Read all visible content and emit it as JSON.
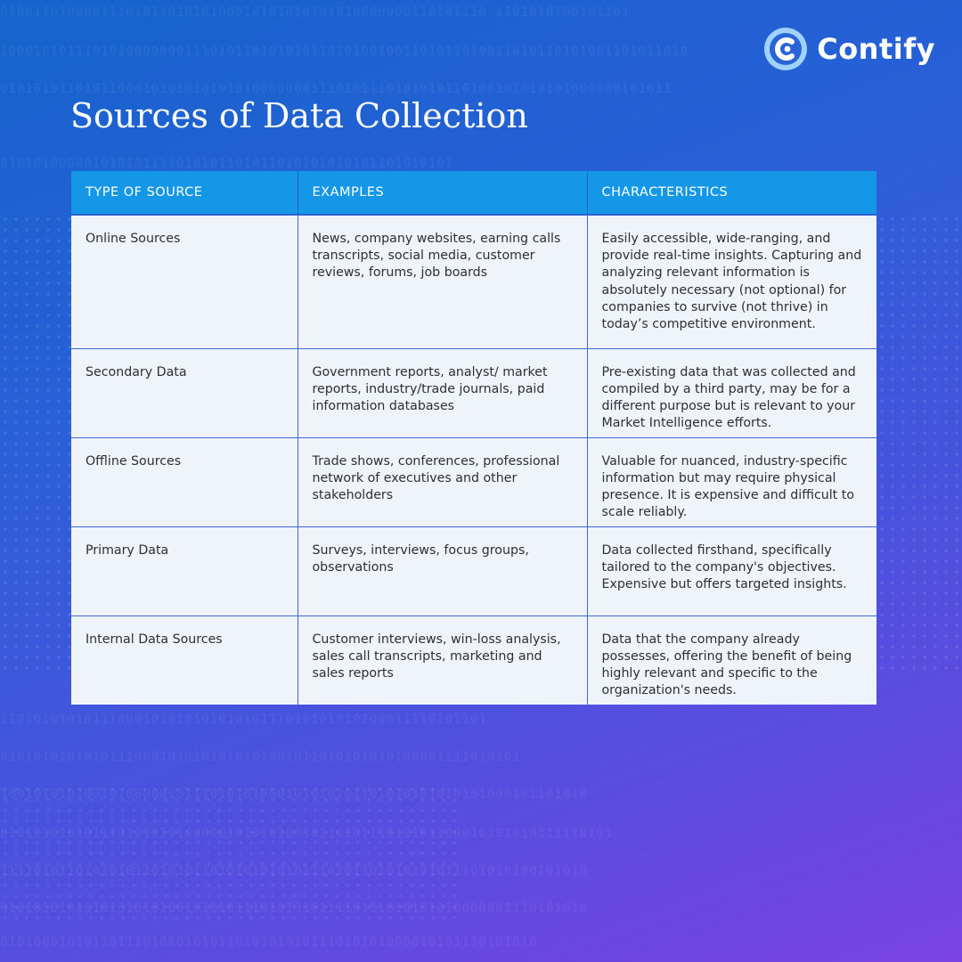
{
  "brand": {
    "name": "Contify",
    "colors": {
      "accent": "#1597e8",
      "logo_ring": "#9fd2ff"
    }
  },
  "title": "Sources of Data Collection",
  "table": {
    "headers": [
      "TYPE OF SOURCE",
      "EXAMPLES",
      "CHARACTERISTICS"
    ],
    "rows": [
      {
        "type": "Online Sources",
        "examples": "News, company websites, earning calls transcripts, social media, customer reviews, forums, job boards",
        "characteristics": "Easily accessible, wide-ranging, and provide real-time insights. Capturing and analyzing relevant information is absolutely necessary (not optional) for companies to survive (not thrive) in today’s competitive environment."
      },
      {
        "type": "Secondary Data",
        "examples": "Government reports, analyst/ market reports, industry/trade journals, paid information databases",
        "characteristics": "Pre-existing data that was collected and compiled by a third party, may be for a different purpose but is relevant to your Market Intelligence efforts."
      },
      {
        "type": "Offline Sources",
        "examples": "Trade shows, conferences, professional network of executives and other stakeholders",
        "characteristics": "Valuable for nuanced, industry-specific information but may require physical presence. It is expensive and difficult to scale reliably."
      },
      {
        "type": "Primary Data",
        "examples": "Surveys, interviews, focus groups, observations",
        "characteristics": "Data collected firsthand, specifically tailored to the company's objectives. Expensive but offers targeted insights."
      },
      {
        "type": "Internal Data Sources",
        "examples": "Customer interviews, win-loss analysis, sales call transcripts, marketing and sales reports",
        "characteristics": "Data that the company already possesses, offering the benefit of being highly relevant and specific to the organization's needs."
      }
    ]
  }
}
